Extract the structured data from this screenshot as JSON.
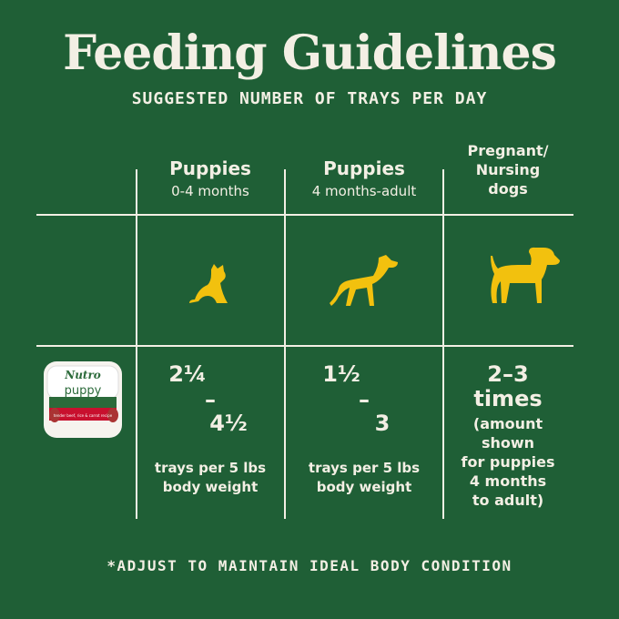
{
  "header": {
    "title": "Feeding Guidelines",
    "subtitle": "SUGGESTED NUMBER OF TRAYS PER DAY"
  },
  "product": {
    "brand": "Nutro",
    "name": "puppy",
    "recipe": "tender beef, rice & carrot recipe"
  },
  "columns": [
    {
      "heading": [
        "Puppies"
      ],
      "subheading": [
        "0-4 months"
      ],
      "amount": [
        "2¼",
        "–",
        "4½"
      ],
      "note": [
        "trays per 5 lbs",
        "body weight"
      ]
    },
    {
      "heading": [
        "Puppies"
      ],
      "subheading": [
        "4 months-adult"
      ],
      "amount": [
        "1½",
        "–",
        "3"
      ],
      "note": [
        "trays per 5 lbs",
        "body weight"
      ]
    },
    {
      "heading": [],
      "subheading": [
        "Pregnant/",
        "Nursing",
        "dogs"
      ],
      "amount": [
        "2–3",
        "times"
      ],
      "note": [
        "(amount",
        "shown",
        "for puppies",
        "4 months",
        "to adult)"
      ]
    }
  ],
  "footer": "*ADJUST TO MAINTAIN IDEAL BODY CONDITION"
}
